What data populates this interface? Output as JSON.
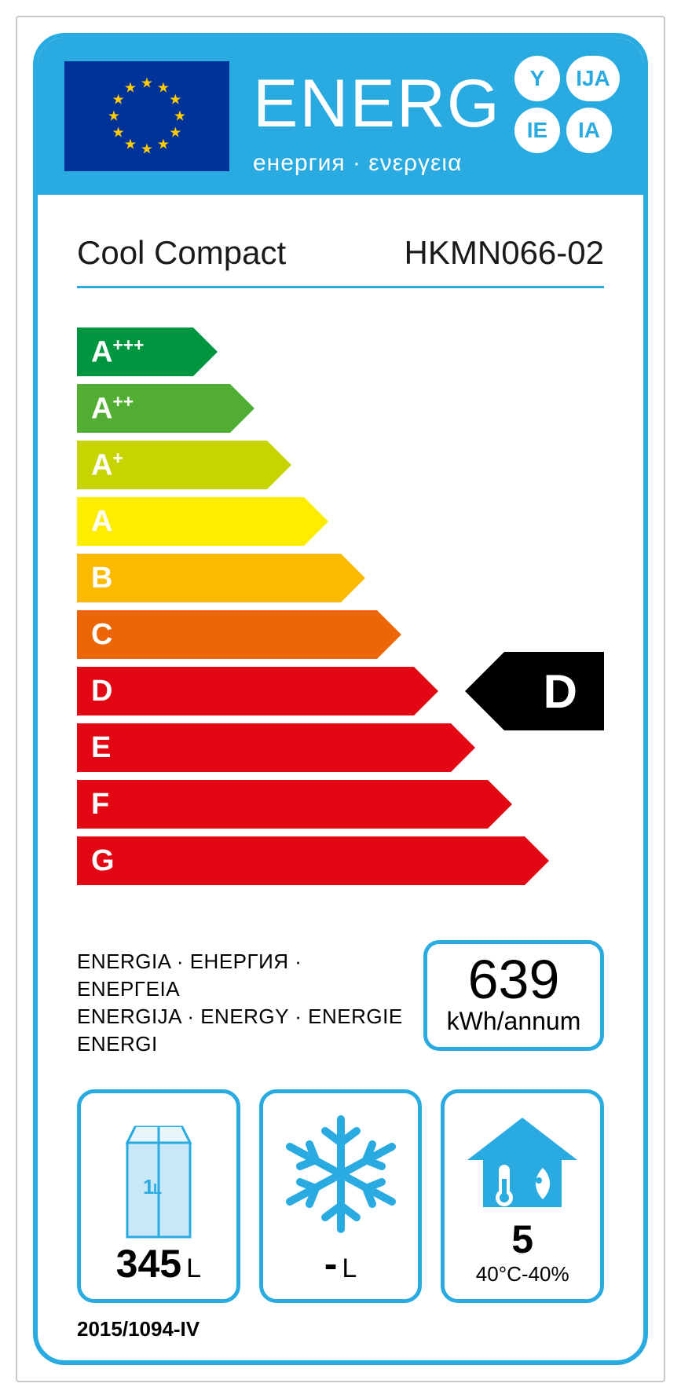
{
  "header": {
    "energ_text": "ENERG",
    "energ_sub": "енергия · ενεργεια",
    "bubbles": [
      "Y",
      "IJA",
      "IE",
      "IA"
    ]
  },
  "brand": {
    "manufacturer": "Cool Compact",
    "model": "HKMN066-02"
  },
  "classes": [
    {
      "label": "A+++",
      "label_display": "A",
      "suffix": "+++",
      "width_pct": 22,
      "color": "#009640"
    },
    {
      "label": "A++",
      "label_display": "A",
      "suffix": "++",
      "width_pct": 29,
      "color": "#52ae32"
    },
    {
      "label": "A+",
      "label_display": "A",
      "suffix": "+",
      "width_pct": 36,
      "color": "#c8d400"
    },
    {
      "label": "A",
      "label_display": "A",
      "suffix": "",
      "width_pct": 43,
      "color": "#ffed00"
    },
    {
      "label": "B",
      "label_display": "B",
      "suffix": "",
      "width_pct": 50,
      "color": "#fbba00"
    },
    {
      "label": "C",
      "label_display": "C",
      "suffix": "",
      "width_pct": 57,
      "color": "#ec6608"
    },
    {
      "label": "D",
      "label_display": "D",
      "suffix": "",
      "width_pct": 64,
      "color": "#e30613"
    },
    {
      "label": "E",
      "label_display": "E",
      "suffix": "",
      "width_pct": 71,
      "color": "#e30613"
    },
    {
      "label": "F",
      "label_display": "F",
      "suffix": "",
      "width_pct": 78,
      "color": "#e30613"
    },
    {
      "label": "G",
      "label_display": "G",
      "suffix": "",
      "width_pct": 85,
      "color": "#e30613"
    }
  ],
  "rating": {
    "class": "D",
    "row_index": 6
  },
  "energy_words": "ENERGIA · ЕНЕРГИЯ · ΕΝΕΡΓΕΙΑ\nENERGIJA · ENERGY · ENERGIE\nENERGI",
  "kwh": {
    "value": "639",
    "unit": "kWh/annum"
  },
  "fridge": {
    "value": "345",
    "unit": "L"
  },
  "freezer": {
    "value": "-",
    "unit": "L"
  },
  "climate": {
    "class": "5",
    "condition": "40°C-40%"
  },
  "regulation": "2015/1094-IV",
  "colors": {
    "frame": "#29abe2",
    "eu_blue": "#003399",
    "eu_gold": "#ffcc00"
  }
}
